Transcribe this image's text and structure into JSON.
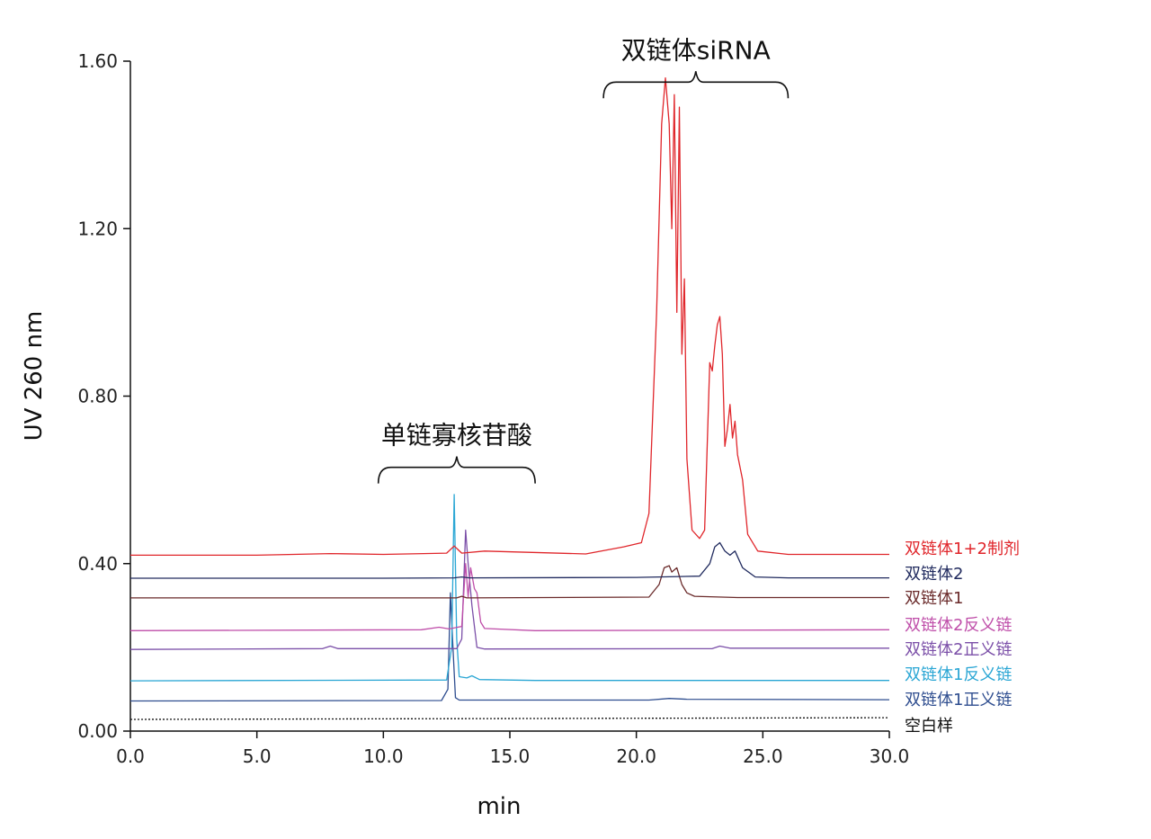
{
  "chart_data": {
    "type": "line",
    "title": "",
    "xlabel": "min",
    "ylabel": "UV 260 nm",
    "xlim": [
      0,
      30
    ],
    "ylim": [
      0,
      1.6
    ],
    "x_ticks": [
      "0.0",
      "5.0",
      "10.0",
      "15.0",
      "20.0",
      "25.0",
      "30.0"
    ],
    "y_ticks": [
      "0.00",
      "0.40",
      "0.80",
      "1.20",
      "1.60"
    ],
    "grid": false,
    "legend_placement": "right",
    "annotations": [
      {
        "text": "单链寡核苷酸",
        "x_range": [
          9.8,
          16.0
        ],
        "y": 0.63
      },
      {
        "text": "双链体siRNA",
        "x_range": [
          18.7,
          26.0
        ],
        "y": 1.55
      }
    ],
    "series": [
      {
        "name": "双链体1+2制剂",
        "color": "#e0262b",
        "baseline": 0.42,
        "points": [
          [
            0,
            0.42
          ],
          [
            5,
            0.42
          ],
          [
            7.9,
            0.424
          ],
          [
            10,
            0.422
          ],
          [
            12.5,
            0.425
          ],
          [
            12.8,
            0.442
          ],
          [
            13.1,
            0.425
          ],
          [
            14,
            0.43
          ],
          [
            18,
            0.423
          ],
          [
            19.5,
            0.44
          ],
          [
            20.2,
            0.45
          ],
          [
            20.5,
            0.52
          ],
          [
            20.8,
            1.0
          ],
          [
            21.0,
            1.45
          ],
          [
            21.15,
            1.56
          ],
          [
            21.3,
            1.45
          ],
          [
            21.4,
            1.2
          ],
          [
            21.5,
            1.52
          ],
          [
            21.6,
            1.0
          ],
          [
            21.7,
            1.49
          ],
          [
            21.8,
            0.9
          ],
          [
            21.9,
            1.08
          ],
          [
            22.0,
            0.65
          ],
          [
            22.2,
            0.48
          ],
          [
            22.5,
            0.46
          ],
          [
            22.7,
            0.48
          ],
          [
            22.9,
            0.88
          ],
          [
            23.0,
            0.86
          ],
          [
            23.1,
            0.92
          ],
          [
            23.2,
            0.97
          ],
          [
            23.3,
            0.99
          ],
          [
            23.4,
            0.9
          ],
          [
            23.5,
            0.68
          ],
          [
            23.6,
            0.72
          ],
          [
            23.7,
            0.78
          ],
          [
            23.8,
            0.7
          ],
          [
            23.9,
            0.74
          ],
          [
            24.0,
            0.66
          ],
          [
            24.2,
            0.6
          ],
          [
            24.4,
            0.47
          ],
          [
            24.8,
            0.43
          ],
          [
            26,
            0.422
          ],
          [
            30,
            0.422
          ]
        ]
      },
      {
        "name": "双链体2",
        "color": "#202a5e",
        "baseline": 0.365,
        "points": [
          [
            0,
            0.365
          ],
          [
            10,
            0.365
          ],
          [
            12.8,
            0.366
          ],
          [
            13.1,
            0.368
          ],
          [
            13.4,
            0.366
          ],
          [
            20,
            0.367
          ],
          [
            22.5,
            0.37
          ],
          [
            22.9,
            0.4
          ],
          [
            23.1,
            0.44
          ],
          [
            23.3,
            0.45
          ],
          [
            23.5,
            0.43
          ],
          [
            23.7,
            0.42
          ],
          [
            23.9,
            0.43
          ],
          [
            24.2,
            0.39
          ],
          [
            24.7,
            0.368
          ],
          [
            26,
            0.366
          ],
          [
            30,
            0.366
          ]
        ]
      },
      {
        "name": "双链体1",
        "color": "#6a2a2a",
        "baseline": 0.318,
        "points": [
          [
            0,
            0.318
          ],
          [
            10,
            0.318
          ],
          [
            12.9,
            0.318
          ],
          [
            13.1,
            0.322
          ],
          [
            13.3,
            0.318
          ],
          [
            20.5,
            0.32
          ],
          [
            20.9,
            0.35
          ],
          [
            21.1,
            0.39
          ],
          [
            21.3,
            0.395
          ],
          [
            21.4,
            0.38
          ],
          [
            21.6,
            0.39
          ],
          [
            21.8,
            0.35
          ],
          [
            22.0,
            0.33
          ],
          [
            22.3,
            0.322
          ],
          [
            24,
            0.319
          ],
          [
            30,
            0.319
          ]
        ]
      },
      {
        "name": "双链体2反义链",
        "color": "#bf4ea9",
        "baseline": 0.24,
        "points": [
          [
            0,
            0.24
          ],
          [
            11.5,
            0.242
          ],
          [
            12.2,
            0.248
          ],
          [
            12.6,
            0.244
          ],
          [
            13.1,
            0.25
          ],
          [
            13.25,
            0.4
          ],
          [
            13.35,
            0.32
          ],
          [
            13.45,
            0.39
          ],
          [
            13.6,
            0.34
          ],
          [
            13.7,
            0.33
          ],
          [
            13.85,
            0.26
          ],
          [
            14.0,
            0.245
          ],
          [
            16,
            0.24
          ],
          [
            30,
            0.242
          ]
        ]
      },
      {
        "name": "双链体2正义链",
        "color": "#7b4fa8",
        "baseline": 0.195,
        "points": [
          [
            0,
            0.195
          ],
          [
            7.6,
            0.197
          ],
          [
            7.9,
            0.203
          ],
          [
            8.2,
            0.197
          ],
          [
            12.9,
            0.197
          ],
          [
            13.1,
            0.22
          ],
          [
            13.25,
            0.48
          ],
          [
            13.35,
            0.4
          ],
          [
            13.5,
            0.3
          ],
          [
            13.7,
            0.2
          ],
          [
            14,
            0.196
          ],
          [
            23.0,
            0.197
          ],
          [
            23.3,
            0.203
          ],
          [
            23.7,
            0.198
          ],
          [
            30,
            0.198
          ]
        ]
      },
      {
        "name": "双链体1反义链",
        "color": "#2aa6d4",
        "baseline": 0.12,
        "points": [
          [
            0,
            0.12
          ],
          [
            12.5,
            0.122
          ],
          [
            12.7,
            0.2
          ],
          [
            12.8,
            0.565
          ],
          [
            12.9,
            0.22
          ],
          [
            13.0,
            0.13
          ],
          [
            13.3,
            0.127
          ],
          [
            13.5,
            0.132
          ],
          [
            13.8,
            0.123
          ],
          [
            16,
            0.121
          ],
          [
            30,
            0.121
          ]
        ]
      },
      {
        "name": "双链体1正义链",
        "color": "#2e4d8f",
        "baseline": 0.072,
        "points": [
          [
            0,
            0.072
          ],
          [
            12.3,
            0.073
          ],
          [
            12.55,
            0.1
          ],
          [
            12.65,
            0.33
          ],
          [
            12.75,
            0.2
          ],
          [
            12.85,
            0.08
          ],
          [
            13.0,
            0.074
          ],
          [
            20.5,
            0.074
          ],
          [
            21.3,
            0.078
          ],
          [
            22,
            0.076
          ],
          [
            30,
            0.075
          ]
        ]
      },
      {
        "name": "空白样",
        "color": "#111111",
        "dashed": true,
        "baseline": 0.028,
        "points": [
          [
            0,
            0.028
          ],
          [
            30,
            0.032
          ]
        ]
      }
    ]
  }
}
